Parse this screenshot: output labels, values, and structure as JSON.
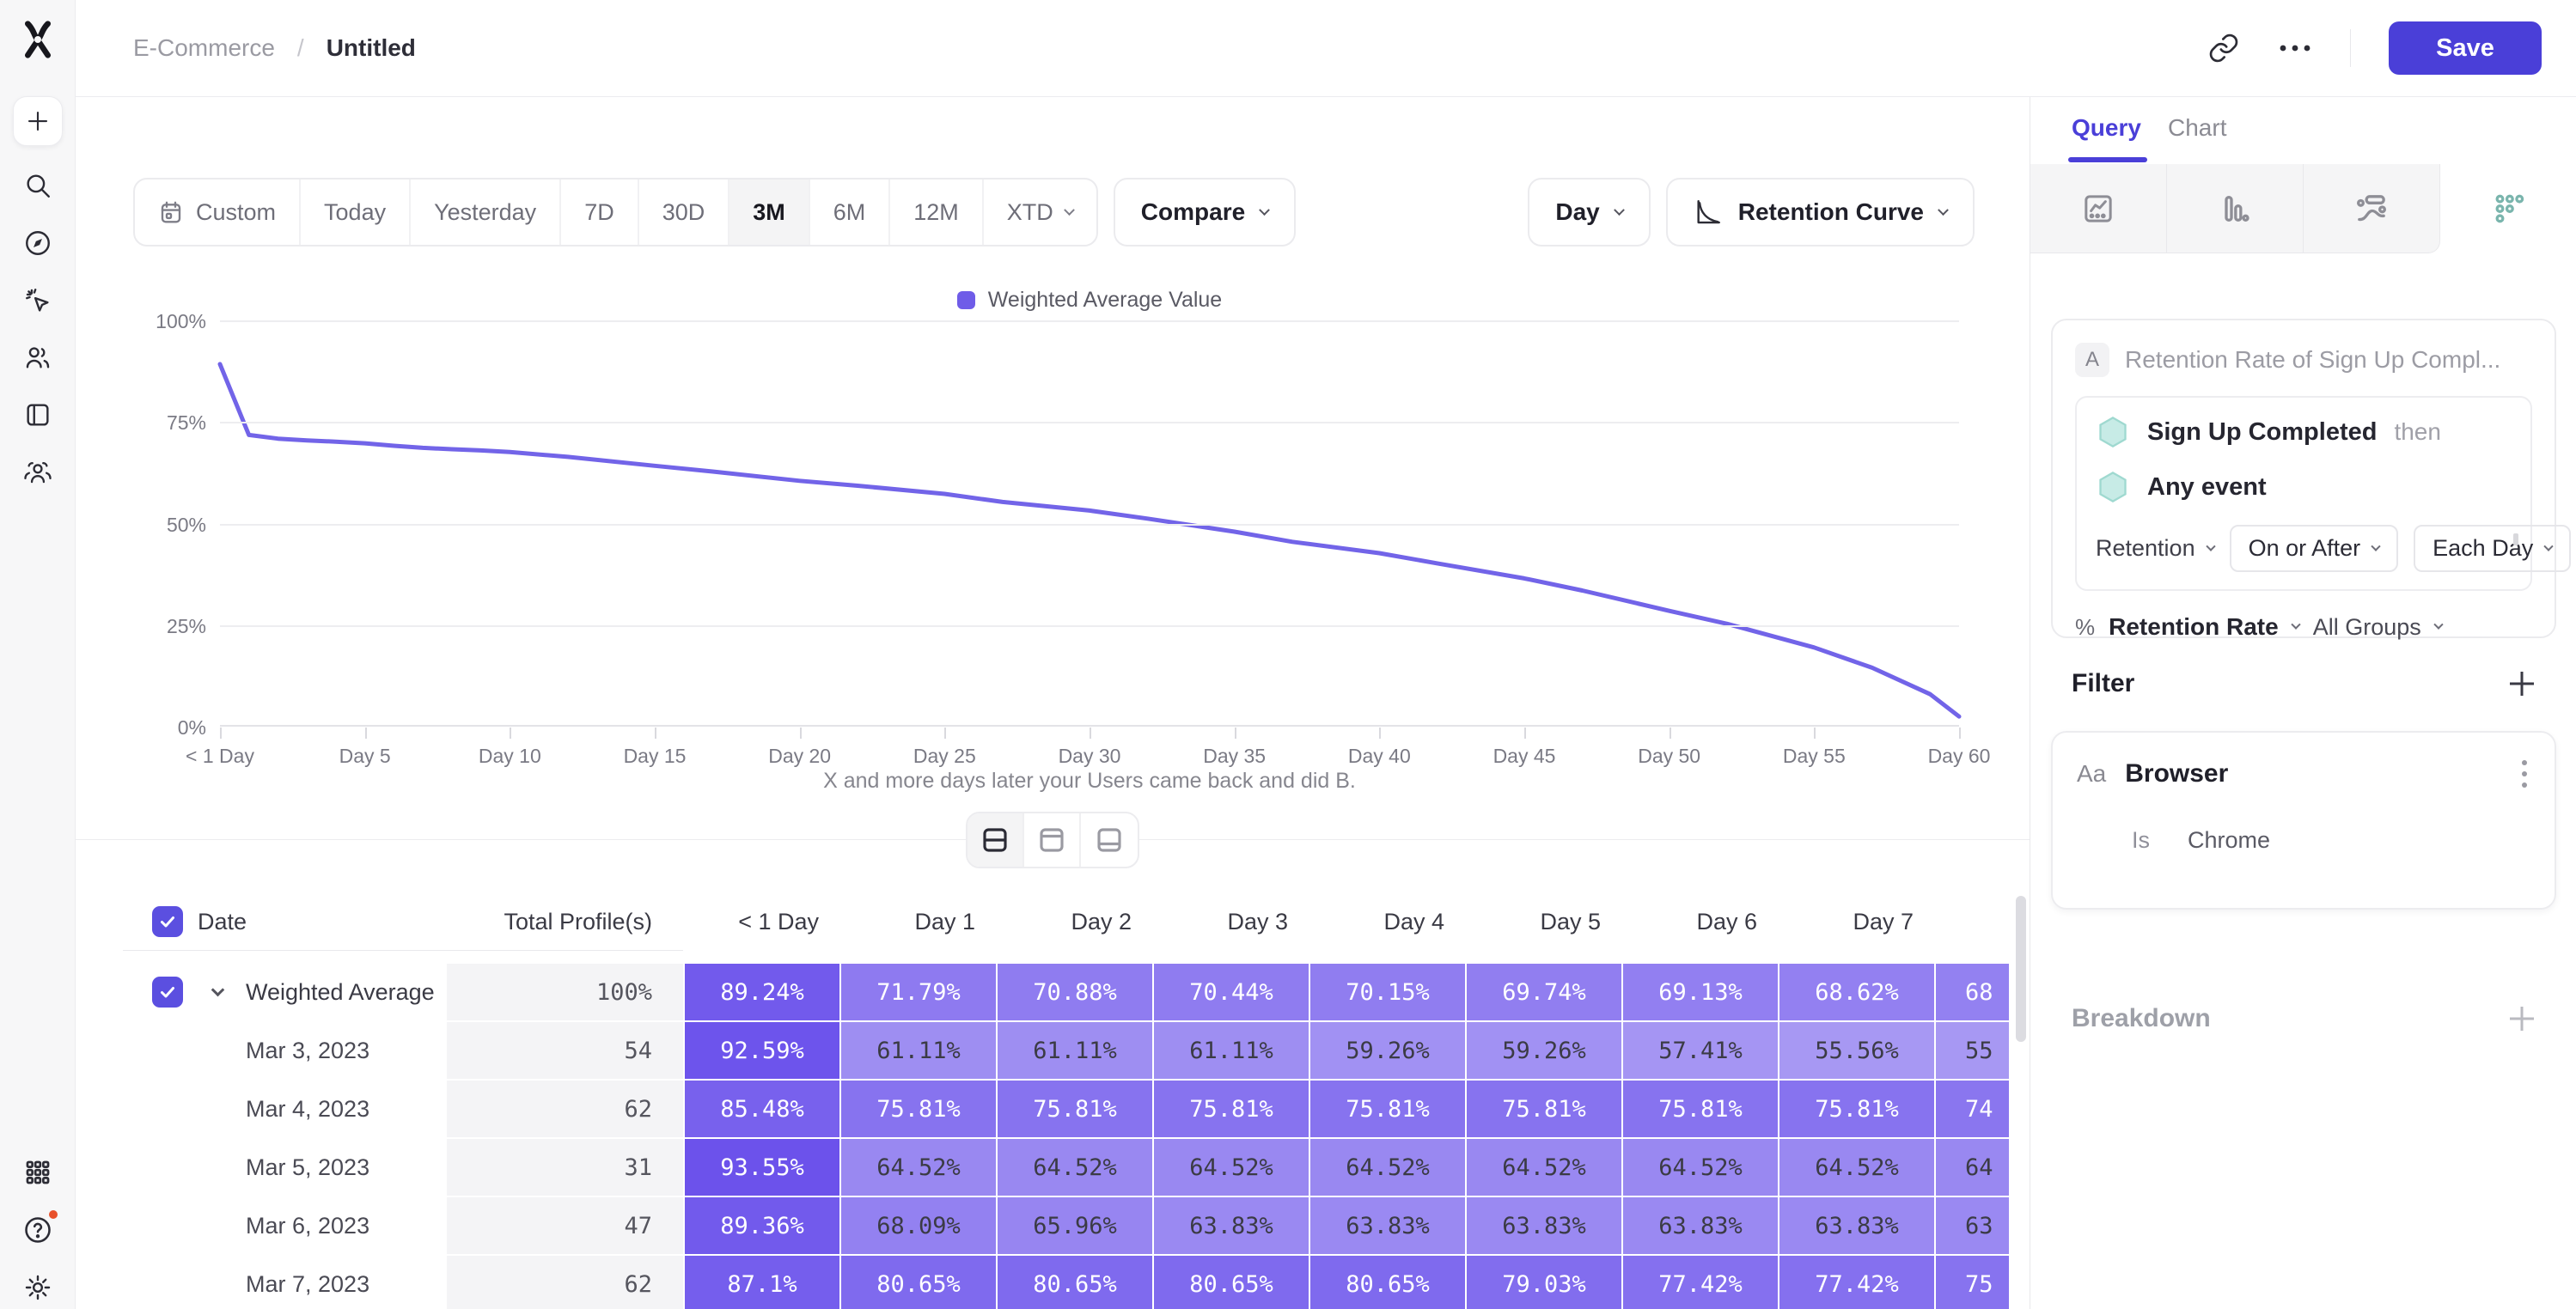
{
  "colors": {
    "accent": "#4a3fd8",
    "line": "#7264e8",
    "legend_swatch": "#6f5ce8",
    "cell_base_rgb": "97,70,234",
    "cell_dark_text": "#3b3b45",
    "teal_icon": "#7ab5ad",
    "hexagon_fill": "#c7ebe6",
    "hexagon_stroke": "#9fd9d0"
  },
  "header": {
    "breadcrumb_parent": "E-Commerce",
    "breadcrumb_sep": "/",
    "breadcrumb_current": "Untitled",
    "save": "Save"
  },
  "toolbar": {
    "ranges": [
      "Custom",
      "Today",
      "Yesterday",
      "7D",
      "30D",
      "3M",
      "6M",
      "12M",
      "XTD"
    ],
    "active_range": "3M",
    "compare": "Compare",
    "granularity": "Day",
    "chart_type": "Retention Curve"
  },
  "chart_data": {
    "type": "line",
    "legend": [
      "Weighted Average Value"
    ],
    "series": [
      {
        "name": "Weighted Average Value",
        "x": [
          0,
          1,
          2,
          3,
          4,
          5,
          6,
          7,
          8,
          9,
          10,
          12,
          15,
          17,
          20,
          22,
          25,
          27,
          30,
          32,
          35,
          37,
          40,
          42,
          45,
          47,
          50,
          52,
          55,
          57,
          59,
          60
        ],
        "y": [
          89.24,
          71.79,
          70.88,
          70.44,
          70.15,
          69.74,
          69.13,
          68.62,
          68.28,
          68.0,
          67.6,
          66.4,
          64.2,
          62.8,
          60.5,
          59.3,
          57.3,
          55.3,
          53.2,
          51.2,
          48.0,
          45.5,
          42.7,
          40.2,
          36.5,
          33.5,
          28.5,
          25.3,
          19.5,
          14.5,
          8.0,
          2.5
        ]
      }
    ],
    "x_tick_labels": [
      "< 1 Day",
      "Day 5",
      "Day 10",
      "Day 15",
      "Day 20",
      "Day 25",
      "Day 30",
      "Day 35",
      "Day 40",
      "Day 45",
      "Day 50",
      "Day 55",
      "Day 60"
    ],
    "y_tick_labels": [
      "100%",
      "75%",
      "50%",
      "25%",
      "0%"
    ],
    "ylim": [
      0,
      100
    ],
    "xlim_days": [
      0,
      60
    ],
    "xlabel": "X and more days later your Users came back and did B.",
    "grid": "horizontal",
    "legend_position": "top-center"
  },
  "table": {
    "headers": {
      "date": "Date",
      "total": "Total Profile(s)",
      "days": [
        "< 1 Day",
        "Day 1",
        "Day 2",
        "Day 3",
        "Day 4",
        "Day 5",
        "Day 6",
        "Day 7"
      ]
    },
    "unit": "%",
    "summary_row": {
      "label": "Weighted Average ...",
      "total": "100%",
      "values": [
        89.24,
        71.79,
        70.88,
        70.44,
        70.15,
        69.74,
        69.13,
        68.62
      ],
      "partial": {
        "text": "68",
        "value": 68.4
      }
    },
    "rows": [
      {
        "date": "Mar 3, 2023",
        "total": "54",
        "values": [
          92.59,
          61.11,
          61.11,
          61.11,
          59.26,
          59.26,
          57.41,
          55.56
        ],
        "partial": {
          "text": "55",
          "value": 55.6
        }
      },
      {
        "date": "Mar 4, 2023",
        "total": "62",
        "values": [
          85.48,
          75.81,
          75.81,
          75.81,
          75.81,
          75.81,
          75.81,
          75.81
        ],
        "partial": {
          "text": "74",
          "value": 74.2
        }
      },
      {
        "date": "Mar 5, 2023",
        "total": "31",
        "values": [
          93.55,
          64.52,
          64.52,
          64.52,
          64.52,
          64.52,
          64.52,
          64.52
        ],
        "partial": {
          "text": "64",
          "value": 64.5
        }
      },
      {
        "date": "Mar 6, 2023",
        "total": "47",
        "values": [
          89.36,
          68.09,
          65.96,
          63.83,
          63.83,
          63.83,
          63.83,
          63.83
        ],
        "partial": {
          "text": "63",
          "value": 63.8
        }
      },
      {
        "date": "Mar 7, 2023",
        "total": "62",
        "values": [
          87.1,
          80.65,
          80.65,
          80.65,
          80.65,
          79.03,
          77.42,
          77.42
        ],
        "partial": {
          "text": "75",
          "value": 75.8
        }
      }
    ]
  },
  "panel": {
    "tabs": [
      "Query",
      "Chart"
    ],
    "active_tab": "Query",
    "query": {
      "badge": "A",
      "title": "Retention Rate of Sign Up Compl...",
      "event1": "Sign Up Completed",
      "then": "then",
      "event2": "Any event",
      "retention_dd": "Retention",
      "on_or_after_dd": "On or After",
      "each_day_dd": "Each Day",
      "percent": "%",
      "metric": "Retention Rate",
      "groups": "All Groups"
    },
    "filter": {
      "heading": "Filter",
      "field_type": "Aa",
      "field": "Browser",
      "operator": "Is",
      "value": "Chrome"
    },
    "breakdown": {
      "heading": "Breakdown"
    }
  }
}
